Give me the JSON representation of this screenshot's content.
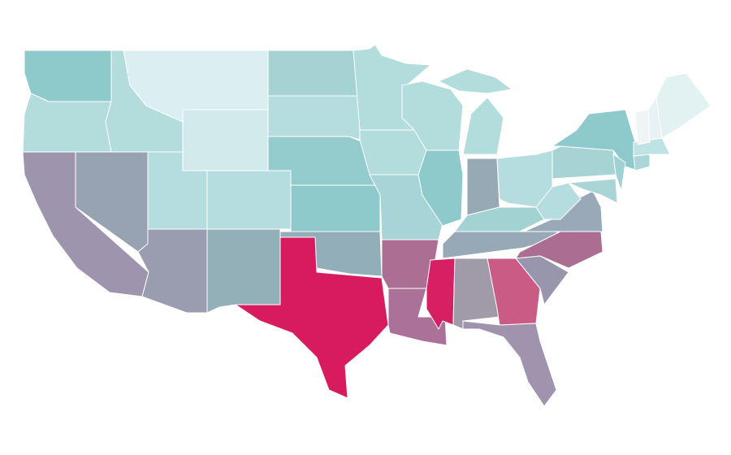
{
  "map": {
    "background": "#ffffff",
    "stroke": "#ffffff",
    "regions": [
      {
        "color": "#8ec9cb"
      },
      {
        "color": "#b3dcdd"
      },
      {
        "color": "#9e94ae"
      },
      {
        "color": "#97a3b3"
      },
      {
        "color": "#b3dcdd"
      },
      {
        "color": "#dbeef0"
      },
      {
        "color": "#d3eaec"
      },
      {
        "color": "#b5dcde"
      },
      {
        "color": "#b5dcde"
      },
      {
        "color": "#9a9caf"
      },
      {
        "color": "#93b0b9"
      },
      {
        "color": "#a5d3d4"
      },
      {
        "color": "#b5dcde"
      },
      {
        "color": "#94ccce"
      },
      {
        "color": "#8ec9cb"
      },
      {
        "color": "#91aeb9"
      },
      {
        "color": "#d81b5e"
      },
      {
        "color": "#b3dcdd"
      },
      {
        "color": "#b3dcdd"
      },
      {
        "color": "#a7d4d6"
      },
      {
        "color": "#ad6e94"
      },
      {
        "color": "#ac7198"
      },
      {
        "color": "#b3dcdd"
      },
      {
        "color": "#8ec9cb"
      },
      {
        "color": "#b3dcdd"
      },
      {
        "color": "#97a9b5"
      },
      {
        "color": "#b5dcde"
      },
      {
        "color": "#a3d2d3"
      },
      {
        "color": "#97a8b6"
      },
      {
        "color": "#d71f64"
      },
      {
        "color": "#a19aa9"
      },
      {
        "color": "#c95b84"
      },
      {
        "color": "#9f93ae"
      },
      {
        "color": "#9896ad"
      },
      {
        "color": "#ac6d93"
      },
      {
        "color": "#99a9b8"
      },
      {
        "color": "#b5dcde"
      },
      {
        "color": "#a6d4d5"
      },
      {
        "color": "#8ec9cb"
      },
      {
        "color": "#aad5d7"
      },
      {
        "color": "#9fd1d2"
      },
      {
        "color": "#abd6d8"
      },
      {
        "color": "#bfe2e4"
      },
      {
        "color": "#f0f4f5"
      },
      {
        "color": "#e6f2f3"
      },
      {
        "color": "#e2f1f2"
      }
    ]
  }
}
